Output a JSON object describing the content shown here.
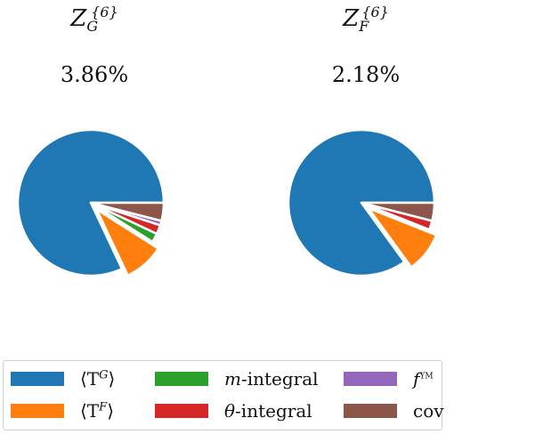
{
  "chart_data": [
    {
      "type": "pie",
      "title": "Z_G^{6}",
      "title_main": "Z",
      "title_sub": "G",
      "title_sup": "{6}",
      "subtitle": "3.86%",
      "slices": [
        {
          "name": "⟨T^G⟩",
          "value": 82.0,
          "color": "#1f77b4",
          "exploded": false
        },
        {
          "name": "⟨T^F⟩",
          "value": 9.0,
          "color": "#ff7f0e",
          "exploded": true
        },
        {
          "name": "m-integral",
          "value": 2.0,
          "color": "#2ca02c",
          "exploded": false
        },
        {
          "name": "θ-integral",
          "value": 2.0,
          "color": "#d62728",
          "exploded": false
        },
        {
          "name": "f^YM",
          "value": 1.0,
          "color": "#9467bd",
          "exploded": false
        },
        {
          "name": "cov",
          "value": 4.0,
          "color": "#8c564b",
          "exploded": false
        }
      ]
    },
    {
      "type": "pie",
      "title": "Z_F^{6}",
      "title_main": "Z",
      "title_sub": "F",
      "title_sup": "{6}",
      "subtitle": "2.18%",
      "slices": [
        {
          "name": "⟨T^G⟩",
          "value": 85.0,
          "color": "#1f77b4",
          "exploded": false
        },
        {
          "name": "⟨T^F⟩",
          "value": 9.0,
          "color": "#ff7f0e",
          "exploded": true
        },
        {
          "name": "m-integral",
          "value": 0.0,
          "color": "#2ca02c",
          "exploded": false
        },
        {
          "name": "θ-integral",
          "value": 2.0,
          "color": "#d62728",
          "exploded": false
        },
        {
          "name": "f^YM",
          "value": 0.0,
          "color": "#9467bd",
          "exploded": false
        },
        {
          "name": "cov",
          "value": 4.0,
          "color": "#8c564b",
          "exploded": false
        }
      ]
    }
  ],
  "legend": {
    "items": [
      {
        "label_pre": "⟨T",
        "label_sup": "G",
        "label_post": "⟩",
        "color": "#1f77b4"
      },
      {
        "label_pre": "⟨T",
        "label_sup": "F",
        "label_post": "⟩",
        "color": "#ff7f0e"
      },
      {
        "label_italic": "m",
        "label_rest": "-integral",
        "color": "#2ca02c"
      },
      {
        "label_italic": "θ",
        "label_rest": "-integral",
        "color": "#d62728"
      },
      {
        "label_italic": "f",
        "label_sup": "YM",
        "color": "#9467bd"
      },
      {
        "label_rest": "cov",
        "color": "#8c564b"
      }
    ]
  }
}
